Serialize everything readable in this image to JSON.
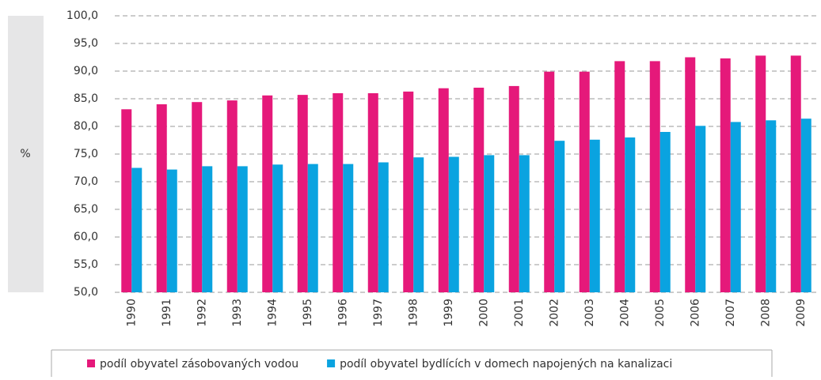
{
  "chart_data": {
    "type": "bar",
    "y_label": "%",
    "categories": [
      "1990",
      "1991",
      "1992",
      "1993",
      "1994",
      "1995",
      "1996",
      "1997",
      "1998",
      "1999",
      "2000",
      "2001",
      "2002",
      "2003",
      "2004",
      "2005",
      "2006",
      "2007",
      "2008",
      "2009"
    ],
    "series": [
      {
        "name": "podíl obyvatel zásobovaných vodou",
        "color": "#e5197a",
        "values": [
          83.1,
          84.0,
          84.4,
          84.7,
          85.6,
          85.7,
          86.0,
          86.0,
          86.3,
          86.9,
          87.0,
          87.3,
          89.9,
          89.9,
          91.8,
          91.8,
          92.5,
          92.3,
          92.8,
          92.8
        ]
      },
      {
        "name": "podíl obyvatel bydlících v domech napojených na kanalizaci",
        "color": "#0aa3e0",
        "values": [
          72.5,
          72.2,
          72.8,
          72.8,
          73.1,
          73.2,
          73.2,
          73.5,
          74.4,
          74.5,
          74.8,
          74.8,
          77.4,
          77.6,
          78.0,
          79.0,
          80.1,
          80.8,
          81.1,
          81.4
        ]
      }
    ],
    "ylim": [
      50,
      100
    ],
    "yticks": [
      {
        "value": 50,
        "label": "50,0"
      },
      {
        "value": 55,
        "label": "55,0"
      },
      {
        "value": 60,
        "label": "60,0"
      },
      {
        "value": 65,
        "label": "65,0"
      },
      {
        "value": 70,
        "label": "70,0"
      },
      {
        "value": 75,
        "label": "75,0"
      },
      {
        "value": 80,
        "label": "80,0"
      },
      {
        "value": 85,
        "label": "85,0"
      },
      {
        "value": 90,
        "label": "90,0"
      },
      {
        "value": 95,
        "label": "95,0"
      },
      {
        "value": 100,
        "label": "100,0"
      }
    ],
    "grid": true
  }
}
